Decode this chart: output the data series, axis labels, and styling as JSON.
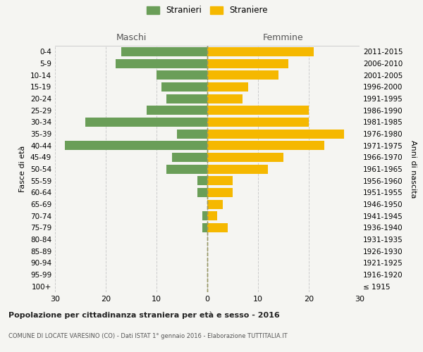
{
  "age_groups": [
    "100+",
    "95-99",
    "90-94",
    "85-89",
    "80-84",
    "75-79",
    "70-74",
    "65-69",
    "60-64",
    "55-59",
    "50-54",
    "45-49",
    "40-44",
    "35-39",
    "30-34",
    "25-29",
    "20-24",
    "15-19",
    "10-14",
    "5-9",
    "0-4"
  ],
  "birth_years": [
    "≤ 1915",
    "1916-1920",
    "1921-1925",
    "1926-1930",
    "1931-1935",
    "1936-1940",
    "1941-1945",
    "1946-1950",
    "1951-1955",
    "1956-1960",
    "1961-1965",
    "1966-1970",
    "1971-1975",
    "1976-1980",
    "1981-1985",
    "1986-1990",
    "1991-1995",
    "1996-2000",
    "2001-2005",
    "2006-2010",
    "2011-2015"
  ],
  "males": [
    0,
    0,
    0,
    0,
    0,
    1,
    1,
    0,
    2,
    2,
    8,
    7,
    28,
    6,
    24,
    12,
    8,
    9,
    10,
    18,
    17
  ],
  "females": [
    0,
    0,
    0,
    0,
    0,
    4,
    2,
    3,
    5,
    5,
    12,
    15,
    23,
    27,
    20,
    20,
    7,
    8,
    14,
    16,
    21
  ],
  "male_color": "#6a9e58",
  "female_color": "#f5b800",
  "bg_color": "#f5f5f2",
  "grid_color": "#cccccc",
  "center_line_color": "#999966",
  "title": "Popolazione per cittadinanza straniera per età e sesso - 2016",
  "subtitle": "COMUNE DI LOCATE VARESINO (CO) - Dati ISTAT 1° gennaio 2016 - Elaborazione TUTTITALIA.IT",
  "ylabel_left": "Fasce di età",
  "ylabel_right": "Anni di nascita",
  "xlabel_left": "Maschi",
  "xlabel_right": "Femmine",
  "legend_stranieri": "Stranieri",
  "legend_straniere": "Straniere",
  "xlim": 30
}
